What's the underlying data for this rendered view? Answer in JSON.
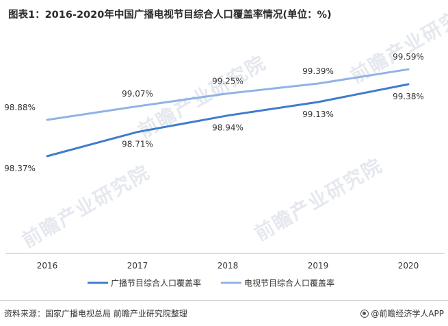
{
  "title": "图表1：2016-2020年中国广播电视节目综合人口覆盖率情况(单位：%)",
  "source": "资料来源：国家广播电视总局 前瞻产业研究院整理",
  "brand": "@前瞻经济学人APP",
  "watermark": "前瞻产业研究院",
  "chart_data": {
    "type": "line",
    "categories": [
      "2016",
      "2017",
      "2018",
      "2019",
      "2020"
    ],
    "series": [
      {
        "name": "广播节目综合人口覆盖率",
        "values": [
          98.37,
          98.71,
          98.94,
          99.13,
          99.38
        ],
        "labels": [
          "98.37%",
          "98.71%",
          "98.94%",
          "99.13%",
          "99.38%"
        ],
        "color": "#3f7ccc"
      },
      {
        "name": "电视节目综合人口覆盖率",
        "values": [
          98.88,
          99.07,
          99.25,
          99.39,
          99.59
        ],
        "labels": [
          "98.88%",
          "99.07%",
          "99.25%",
          "99.39%",
          "99.59%"
        ],
        "color": "#8fb3e6"
      }
    ],
    "legend_position": "bottom",
    "grid": false
  }
}
